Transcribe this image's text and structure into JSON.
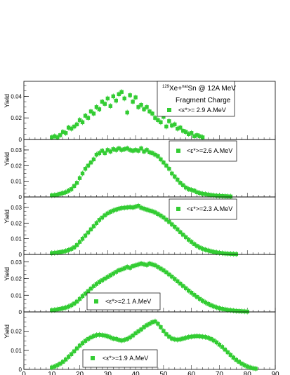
{
  "figure": {
    "reaction": {
      "mass": "129",
      "proj": "Xe+",
      "target_sup": "nat",
      "target": "Sn",
      "energy": " @ 12A MeV"
    },
    "subtitle": "Fragment Charge",
    "marker_color": "#33cc33"
  },
  "chart_data": [
    {
      "type": "scatter",
      "ylabel": "Yield",
      "ylim": [
        0,
        0.05
      ],
      "yticks": [
        {
          "v": 0,
          "t": "0"
        },
        {
          "v": 0.02,
          "t": "0.02"
        },
        {
          "v": 0.04,
          "t": "0.04"
        }
      ],
      "legend": "<ε*>= 2.9 A.MeV",
      "legend_position": "top-right",
      "series": [
        {
          "name": "<ε*>= 2.9 A.MeV",
          "x": [
            10,
            11,
            12,
            13,
            14,
            15,
            16,
            17,
            18,
            19,
            20,
            21,
            22,
            23,
            24,
            25,
            26,
            27,
            28,
            29,
            30,
            31,
            32,
            33,
            34,
            35,
            36,
            37,
            38,
            39,
            40,
            41,
            42,
            43,
            44,
            45,
            46,
            47,
            48,
            49,
            50,
            51,
            52,
            53,
            54,
            55,
            56,
            57,
            58,
            59,
            60,
            61,
            62,
            63,
            64
          ],
          "y": [
            0.002,
            0.003,
            0.002,
            0.004,
            0.007,
            0.006,
            0.011,
            0.01,
            0.012,
            0.014,
            0.018,
            0.016,
            0.022,
            0.02,
            0.026,
            0.024,
            0.03,
            0.028,
            0.035,
            0.033,
            0.038,
            0.031,
            0.04,
            0.036,
            0.042,
            0.044,
            0.038,
            0.025,
            0.041,
            0.035,
            0.039,
            0.03,
            0.032,
            0.028,
            0.03,
            0.026,
            0.024,
            0.02,
            0.018,
            0.016,
            0.021,
            0.012,
            0.017,
            0.013,
            0.014,
            0.01,
            0.011,
            0.008,
            0.007,
            0.005,
            0.006,
            0.003,
            0.004,
            0.003,
            0.002
          ]
        }
      ]
    },
    {
      "type": "scatter",
      "ylabel": "Yield",
      "ylim": [
        0,
        0.034
      ],
      "yticks": [
        {
          "v": 0,
          "t": "0"
        },
        {
          "v": 0.01,
          "t": "0.01"
        },
        {
          "v": 0.02,
          "t": "0.02"
        },
        {
          "v": 0.03,
          "t": "0.03"
        }
      ],
      "legend": "<ε*>=2.6 A.MeV",
      "legend_position": "top-right",
      "series": [
        {
          "name": "<ε*>=2.6 A.MeV",
          "x": [
            10,
            11,
            12,
            13,
            14,
            15,
            16,
            17,
            18,
            19,
            20,
            21,
            22,
            23,
            24,
            25,
            26,
            27,
            28,
            29,
            30,
            31,
            32,
            33,
            34,
            35,
            36,
            37,
            38,
            39,
            40,
            41,
            42,
            43,
            44,
            45,
            46,
            47,
            48,
            49,
            50,
            51,
            52,
            53,
            54,
            55,
            56,
            57,
            58,
            59,
            60,
            61,
            62,
            63,
            64,
            65,
            66,
            67,
            68,
            69,
            70,
            71,
            72,
            73,
            74
          ],
          "y": [
            0.001,
            0.0012,
            0.0015,
            0.002,
            0.0025,
            0.003,
            0.004,
            0.005,
            0.007,
            0.009,
            0.012,
            0.015,
            0.018,
            0.02,
            0.022,
            0.024,
            0.027,
            0.028,
            0.0295,
            0.028,
            0.03,
            0.029,
            0.0305,
            0.03,
            0.031,
            0.03,
            0.0305,
            0.031,
            0.03,
            0.0295,
            0.03,
            0.0295,
            0.031,
            0.029,
            0.03,
            0.0285,
            0.028,
            0.027,
            0.026,
            0.024,
            0.022,
            0.02,
            0.018,
            0.015,
            0.013,
            0.011,
            0.009,
            0.0075,
            0.006,
            0.005,
            0.0045,
            0.004,
            0.003,
            0.0025,
            0.002,
            0.0018,
            0.0015,
            0.0012,
            0.001,
            0.0008,
            0.0007,
            0.0006,
            0.0005,
            0.0004,
            0.0003
          ]
        }
      ]
    },
    {
      "type": "scatter",
      "ylabel": "Yield",
      "ylim": [
        0,
        0.034
      ],
      "yticks": [
        {
          "v": 0,
          "t": "0"
        },
        {
          "v": 0.01,
          "t": "0.01"
        },
        {
          "v": 0.02,
          "t": "0.02"
        },
        {
          "v": 0.03,
          "t": "0.03"
        }
      ],
      "legend": "<ε*>=2.3 A.MeV",
      "legend_position": "top-right",
      "series": [
        {
          "name": "<ε*>=2.3 A.MeV",
          "x": [
            10,
            11,
            12,
            13,
            14,
            15,
            16,
            17,
            18,
            19,
            20,
            21,
            22,
            23,
            24,
            25,
            26,
            27,
            28,
            29,
            30,
            31,
            32,
            33,
            34,
            35,
            36,
            37,
            38,
            39,
            40,
            41,
            42,
            43,
            44,
            45,
            46,
            47,
            48,
            49,
            50,
            51,
            52,
            53,
            54,
            55,
            56,
            57,
            58,
            59,
            60,
            61,
            62,
            63,
            64,
            65,
            66,
            67,
            68,
            69,
            70,
            71,
            72,
            73,
            74,
            75,
            76
          ],
          "y": [
            0.0008,
            0.001,
            0.0012,
            0.0015,
            0.0018,
            0.0022,
            0.0028,
            0.0035,
            0.0045,
            0.006,
            0.008,
            0.01,
            0.012,
            0.014,
            0.016,
            0.018,
            0.02,
            0.022,
            0.0235,
            0.025,
            0.0262,
            0.0272,
            0.028,
            0.0286,
            0.0292,
            0.0296,
            0.0298,
            0.03,
            0.0302,
            0.03,
            0.0305,
            0.031,
            0.0298,
            0.0292,
            0.0286,
            0.028,
            0.0275,
            0.0268,
            0.0258,
            0.0248,
            0.0236,
            0.0222,
            0.0208,
            0.0192,
            0.0176,
            0.016,
            0.0142,
            0.0126,
            0.011,
            0.0094,
            0.008,
            0.0066,
            0.0054,
            0.0044,
            0.0036,
            0.003,
            0.0025,
            0.002,
            0.0016,
            0.0013,
            0.001,
            0.0008,
            0.0006,
            0.0005,
            0.0004,
            0.0003,
            0.0002
          ]
        }
      ]
    },
    {
      "type": "scatter",
      "ylabel": "Yield",
      "ylim": [
        0,
        0.032
      ],
      "yticks": [
        {
          "v": 0,
          "t": "0"
        },
        {
          "v": 0.01,
          "t": "0.01"
        },
        {
          "v": 0.02,
          "t": "0.02"
        },
        {
          "v": 0.03,
          "t": "0.03"
        }
      ],
      "legend": "<ε*>=2.1 A.MeV",
      "legend_position": "bottom-center",
      "series": [
        {
          "name": "<ε*>=2.1 A.MeV",
          "x": [
            10,
            11,
            12,
            13,
            14,
            15,
            16,
            17,
            18,
            19,
            20,
            21,
            22,
            23,
            24,
            25,
            26,
            27,
            28,
            29,
            30,
            31,
            32,
            33,
            34,
            35,
            36,
            37,
            38,
            39,
            40,
            41,
            42,
            43,
            44,
            45,
            46,
            47,
            48,
            49,
            50,
            51,
            52,
            53,
            54,
            55,
            56,
            57,
            58,
            59,
            60,
            61,
            62,
            63,
            64,
            65,
            66,
            67,
            68,
            69,
            70,
            71,
            72,
            73,
            74,
            75,
            76,
            77,
            78,
            79,
            80
          ],
          "y": [
            0.001,
            0.0012,
            0.0015,
            0.0018,
            0.0022,
            0.0026,
            0.0032,
            0.004,
            0.005,
            0.0062,
            0.0078,
            0.0095,
            0.011,
            0.0125,
            0.014,
            0.0155,
            0.0168,
            0.018,
            0.019,
            0.02,
            0.021,
            0.022,
            0.023,
            0.024,
            0.025,
            0.0255,
            0.0262,
            0.027,
            0.0265,
            0.0275,
            0.028,
            0.0285,
            0.029,
            0.0286,
            0.0282,
            0.029,
            0.0285,
            0.028,
            0.027,
            0.026,
            0.025,
            0.0238,
            0.0225,
            0.0212,
            0.0198,
            0.0184,
            0.017,
            0.0156,
            0.0142,
            0.0128,
            0.0115,
            0.0102,
            0.009,
            0.0078,
            0.0067,
            0.0057,
            0.0048,
            0.004,
            0.0033,
            0.0027,
            0.0022,
            0.0018,
            0.0015,
            0.0012,
            0.001,
            0.0008,
            0.0006,
            0.0005,
            0.0004,
            0.0003,
            0.0002
          ]
        }
      ]
    },
    {
      "type": "scatter",
      "ylabel": "Yield",
      "ylim": [
        0,
        0.028
      ],
      "yticks": [
        {
          "v": 0,
          "t": "0"
        },
        {
          "v": 0.01,
          "t": "0.01"
        },
        {
          "v": 0.02,
          "t": "0.02"
        }
      ],
      "legend": "<ε*>=1.9 A.MeV",
      "legend_position": "bottom-center",
      "xlim": [
        0,
        90
      ],
      "xticks": [
        {
          "v": 0,
          "t": "0"
        },
        {
          "v": 10,
          "t": "10"
        },
        {
          "v": 20,
          "t": "20"
        },
        {
          "v": 30,
          "t": "30"
        },
        {
          "v": 40,
          "t": "40"
        },
        {
          "v": 50,
          "t": "50"
        },
        {
          "v": 60,
          "t": "60"
        },
        {
          "v": 70,
          "t": "70"
        },
        {
          "v": 80,
          "t": "80"
        },
        {
          "v": 90,
          "t": "90"
        }
      ],
      "series": [
        {
          "name": "<ε*>=1.9 A.MeV",
          "x": [
            10,
            11,
            12,
            13,
            14,
            15,
            16,
            17,
            18,
            19,
            20,
            21,
            22,
            23,
            24,
            25,
            26,
            27,
            28,
            29,
            30,
            31,
            32,
            33,
            34,
            35,
            36,
            37,
            38,
            39,
            40,
            41,
            42,
            43,
            44,
            45,
            46,
            47,
            48,
            49,
            50,
            51,
            52,
            53,
            54,
            55,
            56,
            57,
            58,
            59,
            60,
            61,
            62,
            63,
            64,
            65,
            66,
            67,
            68,
            69,
            70,
            71,
            72,
            73,
            74,
            75,
            76,
            77,
            78,
            79,
            80,
            81,
            82,
            83
          ],
          "y": [
            0.001,
            0.0015,
            0.0022,
            0.003,
            0.004,
            0.0052,
            0.0066,
            0.008,
            0.0095,
            0.011,
            0.0125,
            0.0138,
            0.015,
            0.016,
            0.0168,
            0.0175,
            0.018,
            0.0182,
            0.018,
            0.0178,
            0.0174,
            0.0168,
            0.0162,
            0.016,
            0.0155,
            0.0152,
            0.0155,
            0.016,
            0.0168,
            0.0178,
            0.019,
            0.02,
            0.021,
            0.0222,
            0.0232,
            0.024,
            0.0248,
            0.0252,
            0.024,
            0.0222,
            0.0202,
            0.0185,
            0.0172,
            0.0162,
            0.0158,
            0.0156,
            0.0158,
            0.0162,
            0.0166,
            0.017,
            0.0172,
            0.0174,
            0.0175,
            0.0174,
            0.0172,
            0.017,
            0.0166,
            0.016,
            0.0152,
            0.0142,
            0.013,
            0.0118,
            0.0104,
            0.009,
            0.0076,
            0.0062,
            0.005,
            0.004,
            0.003,
            0.0022,
            0.0015,
            0.001,
            0.0006,
            0.0004
          ]
        }
      ]
    }
  ]
}
